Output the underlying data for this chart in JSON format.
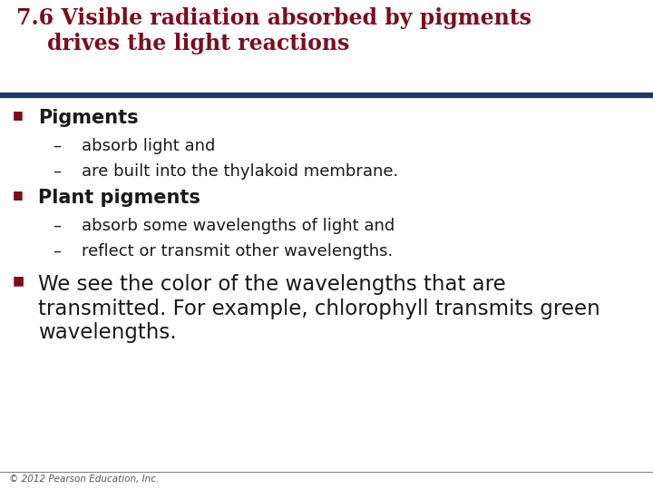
{
  "title_line1": "7.6 Visible radiation absorbed by pigments",
  "title_line2": "drives the light reactions",
  "title_color": "#7B0D1E",
  "title_fontsize": 17,
  "separator_color": "#1F3864",
  "background_color": "#FFFFFF",
  "bullet_color": "#7B0D1E",
  "bullet_char": "■",
  "dash_char": "–",
  "body_color": "#1a1a1a",
  "footer_text": "© 2012 Pearson Education, Inc.",
  "footer_fontsize": 7.5,
  "footer_color": "#555555",
  "items": [
    {
      "type": "bullet",
      "text": "Pigments",
      "fontsize": 15,
      "bold": true
    },
    {
      "type": "sub",
      "text": "absorb light and",
      "fontsize": 13
    },
    {
      "type": "sub",
      "text": "are built into the thylakoid membrane.",
      "fontsize": 13
    },
    {
      "type": "bullet",
      "text": "Plant pigments",
      "fontsize": 15,
      "bold": true
    },
    {
      "type": "sub",
      "text": "absorb some wavelengths of light and",
      "fontsize": 13
    },
    {
      "type": "sub",
      "text": "reflect or transmit other wavelengths.",
      "fontsize": 13
    },
    {
      "type": "bullet_large",
      "text": "We see the color of the wavelengths that are\ntransmitted. For example, chlorophyll transmits green\nwavelengths.",
      "fontsize": 16.5,
      "bold": false
    }
  ]
}
